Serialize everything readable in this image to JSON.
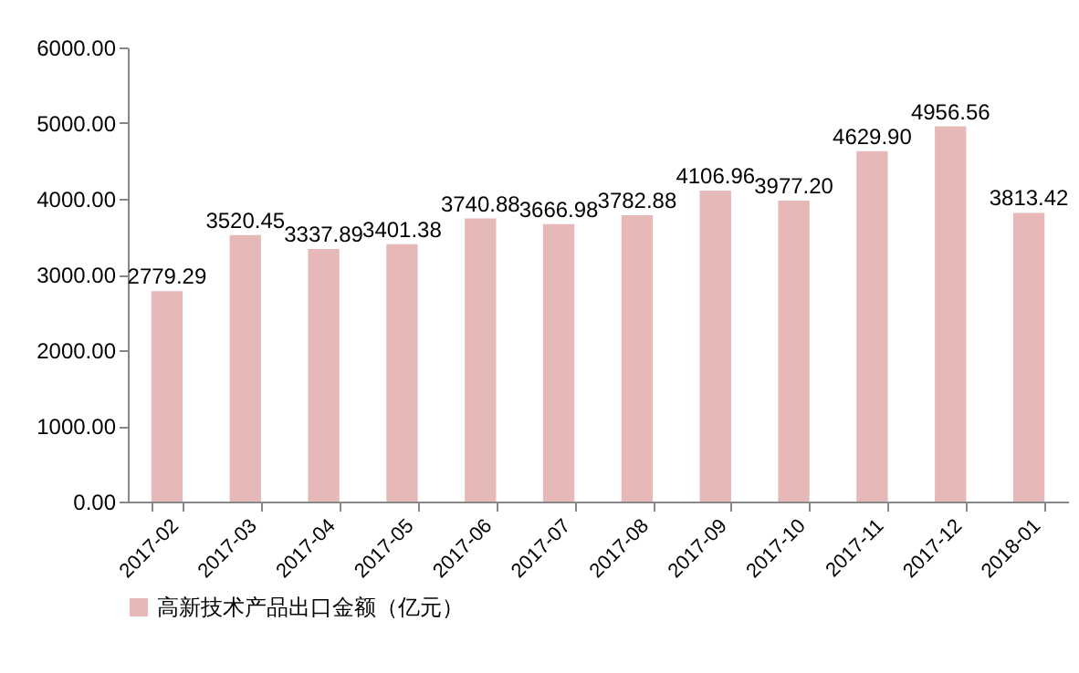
{
  "chart_data": {
    "type": "bar",
    "categories": [
      "2017-02",
      "2017-03",
      "2017-04",
      "2017-05",
      "2017-06",
      "2017-07",
      "2017-08",
      "2017-09",
      "2017-10",
      "2017-11",
      "2017-12",
      "2018-01"
    ],
    "series": [
      {
        "name": "高新技术产品出口金额（亿元）",
        "color": "#e6b8b7",
        "values": [
          2779.29,
          3520.45,
          3337.89,
          3401.38,
          3740.88,
          3666.98,
          3782.88,
          4106.96,
          3977.2,
          4629.9,
          4956.56,
          3813.42
        ],
        "value_labels": [
          "2779.29",
          "3520.45",
          "3337.89",
          "3401.38",
          "3740.88",
          "3666.98",
          "3782.88",
          "4106.96",
          "3977.20",
          "4629.90",
          "4956.56",
          "3813.42"
        ]
      }
    ],
    "ylim": [
      0,
      6000
    ],
    "yticks": [
      {
        "value": 0,
        "label": "0.00"
      },
      {
        "value": 1000,
        "label": "1000.00"
      },
      {
        "value": 2000,
        "label": "2000.00"
      },
      {
        "value": 3000,
        "label": "3000.00"
      },
      {
        "value": 4000,
        "label": "4000.00"
      },
      {
        "value": 5000,
        "label": "5000.00"
      },
      {
        "value": 6000,
        "label": "6000.00"
      }
    ],
    "grid": false,
    "legend": "bottom"
  }
}
